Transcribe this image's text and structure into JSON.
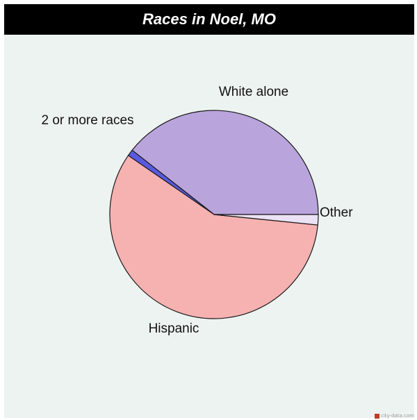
{
  "chart_data": {
    "type": "pie",
    "title": "Races in Noel, MO",
    "slices": [
      {
        "label": "White alone",
        "value": 39.4,
        "color": "#b9a4dc"
      },
      {
        "label": "Other",
        "value": 1.0,
        "color": "#5a5ae0"
      },
      {
        "label": "Hispanic",
        "value": 58.0,
        "color": "#f6b1b1"
      },
      {
        "label": "2 or more races",
        "value": 1.6,
        "color": "#ece2f6"
      }
    ]
  },
  "watermark": {
    "text": "city-data.com"
  }
}
